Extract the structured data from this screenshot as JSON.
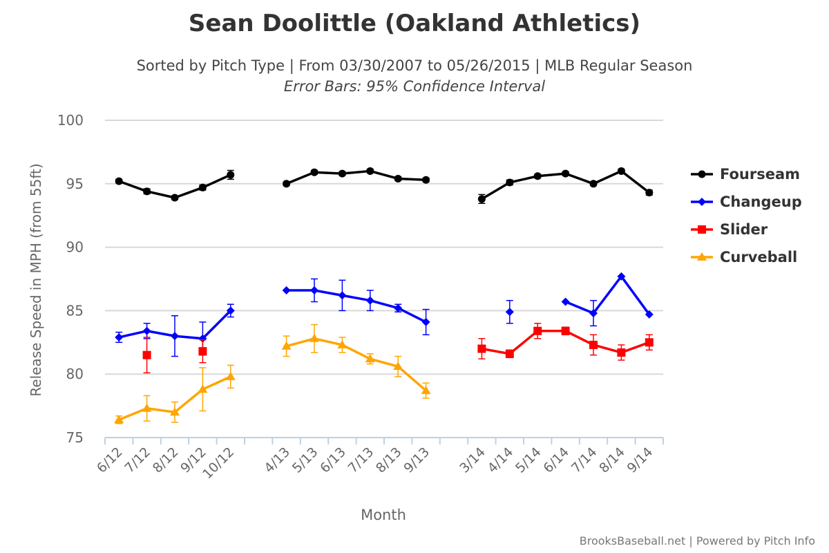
{
  "title": "Sean Doolittle (Oakland Athletics)",
  "subtitle": "Sorted by Pitch Type | From 03/30/2007 to 05/26/2015 | MLB Regular Season",
  "subtitle2": "Error Bars: 95% Confidence Interval",
  "credits": "BrooksBaseball.net | Powered by Pitch Info",
  "chart_data": {
    "type": "line",
    "xlabel": "Month",
    "ylabel": "Release Speed in MPH (from 55ft)",
    "ylim": [
      75,
      100
    ],
    "yticks": [
      75,
      80,
      85,
      90,
      95,
      100
    ],
    "grid": true,
    "legend_placement": "right",
    "categories": [
      "6/12",
      "7/12",
      "8/12",
      "9/12",
      "10/12",
      "",
      "4/13",
      "5/13",
      "6/13",
      "7/13",
      "8/13",
      "9/13",
      "",
      "3/14",
      "4/14",
      "5/14",
      "6/14",
      "7/14",
      "8/14",
      "9/14"
    ],
    "series": [
      {
        "name": "Fourseam",
        "color": "#000000",
        "marker": "circle",
        "values": [
          95.2,
          94.4,
          93.9,
          94.7,
          95.7,
          null,
          95.0,
          95.9,
          95.8,
          96.0,
          95.4,
          95.3,
          null,
          93.8,
          95.1,
          95.6,
          95.8,
          95.0,
          96.0,
          94.3
        ],
        "errors": [
          0.15,
          0.2,
          0.15,
          0.2,
          0.35,
          null,
          0.15,
          0.15,
          0.15,
          0.15,
          0.15,
          0.15,
          null,
          0.35,
          0.2,
          0.15,
          0.15,
          0.15,
          0.15,
          0.2
        ]
      },
      {
        "name": "Changeup",
        "color": "#0000ff",
        "marker": "diamond",
        "values": [
          82.9,
          83.4,
          83.0,
          82.8,
          85.0,
          null,
          86.6,
          86.6,
          86.2,
          85.8,
          85.2,
          84.1,
          null,
          null,
          84.9,
          null,
          85.7,
          84.8,
          87.7,
          84.7
        ],
        "errors": [
          0.4,
          0.6,
          1.6,
          1.3,
          0.5,
          null,
          0.05,
          0.9,
          1.2,
          0.8,
          0.3,
          1.0,
          null,
          null,
          0.9,
          null,
          0.05,
          1.0,
          0.05,
          0.05
        ]
      },
      {
        "name": "Slider",
        "color": "#ff0000",
        "marker": "square",
        "values": [
          null,
          81.5,
          null,
          81.8,
          null,
          null,
          null,
          null,
          null,
          null,
          null,
          null,
          null,
          82.0,
          81.6,
          83.4,
          83.4,
          82.3,
          81.7,
          82.5
        ],
        "errors": [
          null,
          1.4,
          null,
          0.9,
          null,
          null,
          null,
          null,
          null,
          null,
          null,
          null,
          null,
          0.8,
          0.3,
          0.6,
          0.3,
          0.8,
          0.6,
          0.6
        ]
      },
      {
        "name": "Curveball",
        "color": "#ffa500",
        "marker": "triangle",
        "values": [
          76.4,
          77.3,
          77.0,
          78.8,
          79.8,
          null,
          82.2,
          82.8,
          82.3,
          81.2,
          80.6,
          78.7,
          null,
          null,
          null,
          null,
          null,
          null,
          null,
          null
        ],
        "errors": [
          0.3,
          1.0,
          0.8,
          1.7,
          0.9,
          null,
          0.8,
          1.1,
          0.6,
          0.4,
          0.8,
          0.6,
          null,
          null,
          null,
          null,
          null,
          null,
          null,
          null
        ]
      }
    ]
  }
}
